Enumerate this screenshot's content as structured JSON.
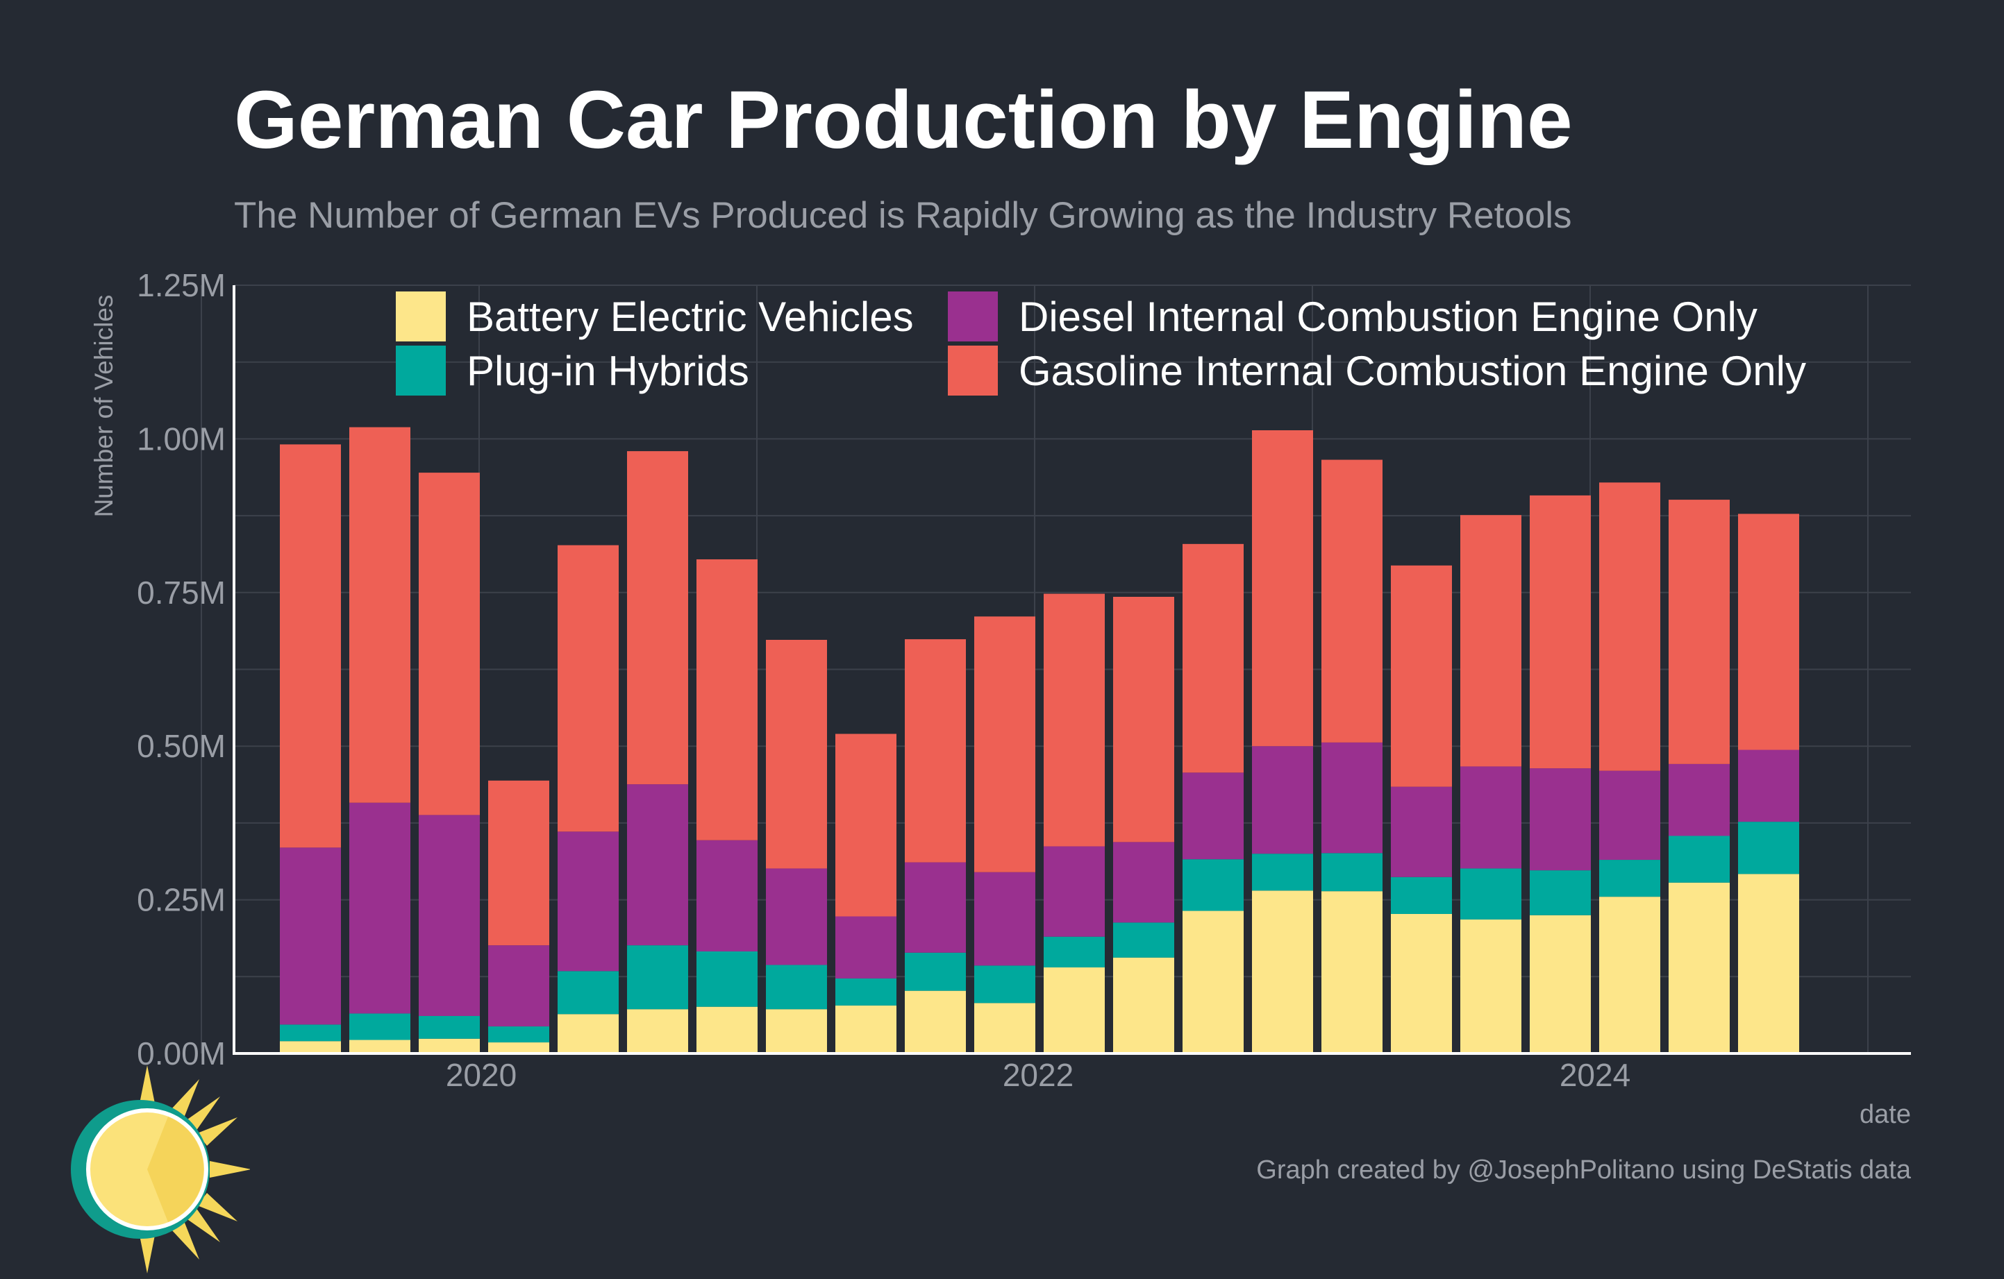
{
  "header": {
    "title": "German Car Production by Engine",
    "subtitle": "The Number of German EVs Produced is Rapidly Growing as the Industry Retools"
  },
  "caption": "Graph created by @JosephPolitano using DeStatis data",
  "colors": {
    "background": "#252a33",
    "grid": "#3c414b",
    "axis": "#ffffff",
    "tick_text": "#9a9ea6"
  },
  "chart_data": {
    "type": "bar",
    "stacked": true,
    "title": "German Car Production by Engine",
    "subtitle": "The Number of German EVs Produced is Rapidly Growing as the Industry Retools",
    "xlabel": "date",
    "ylabel": "Number of Vehicles",
    "x_ticks": [
      "2020",
      "2022",
      "2024"
    ],
    "y_ticks": [
      "0.00M",
      "0.25M",
      "0.50M",
      "0.75M",
      "1.00M",
      "1.25M"
    ],
    "ylim": [
      0,
      1250000
    ],
    "grid": true,
    "legend_position": "top",
    "categories": [
      "2019-Q3",
      "2019-Q4",
      "2020-Q1",
      "2020-Q2",
      "2020-Q3",
      "2020-Q4",
      "2021-Q1",
      "2021-Q2",
      "2021-Q3",
      "2021-Q4",
      "2022-Q1",
      "2022-Q2",
      "2022-Q3",
      "2022-Q4",
      "2023-Q1",
      "2023-Q2",
      "2023-Q3",
      "2023-Q4",
      "2024-Q1",
      "2024-Q2",
      "2024-Q3",
      "2024-Q4"
    ],
    "series": [
      {
        "name": "Battery Electric Vehicles",
        "color": "#fde68a",
        "values": [
          20000,
          22000,
          24000,
          18000,
          64000,
          72000,
          76000,
          72000,
          78000,
          102000,
          82000,
          140000,
          156000,
          232000,
          265000,
          264000,
          227000,
          218000,
          225000,
          255000,
          278000,
          292000
        ]
      },
      {
        "name": "Plug-in Hybrids",
        "color": "#00a99d",
        "values": [
          27000,
          43000,
          37000,
          26000,
          70000,
          104000,
          90000,
          72000,
          44000,
          62000,
          61000,
          50000,
          57000,
          84000,
          60000,
          62000,
          60000,
          83000,
          73000,
          60000,
          76000,
          85000
        ]
      },
      {
        "name": "Diesel Internal Combustion Engine Only",
        "color": "#9a308f",
        "values": [
          288000,
          343000,
          327000,
          132000,
          227000,
          262000,
          181000,
          157000,
          101000,
          147000,
          152000,
          147000,
          131000,
          141000,
          175000,
          180000,
          147000,
          166000,
          166000,
          145000,
          117000,
          117000
        ]
      },
      {
        "name": "Gasoline Internal Combustion Engine Only",
        "color": "#ee6055",
        "values": [
          656000,
          611000,
          557000,
          268000,
          466000,
          542000,
          457000,
          372000,
          297000,
          363000,
          416000,
          411000,
          399000,
          372000,
          514000,
          460000,
          360000,
          409000,
          444000,
          469000,
          430000,
          384000
        ]
      }
    ]
  }
}
